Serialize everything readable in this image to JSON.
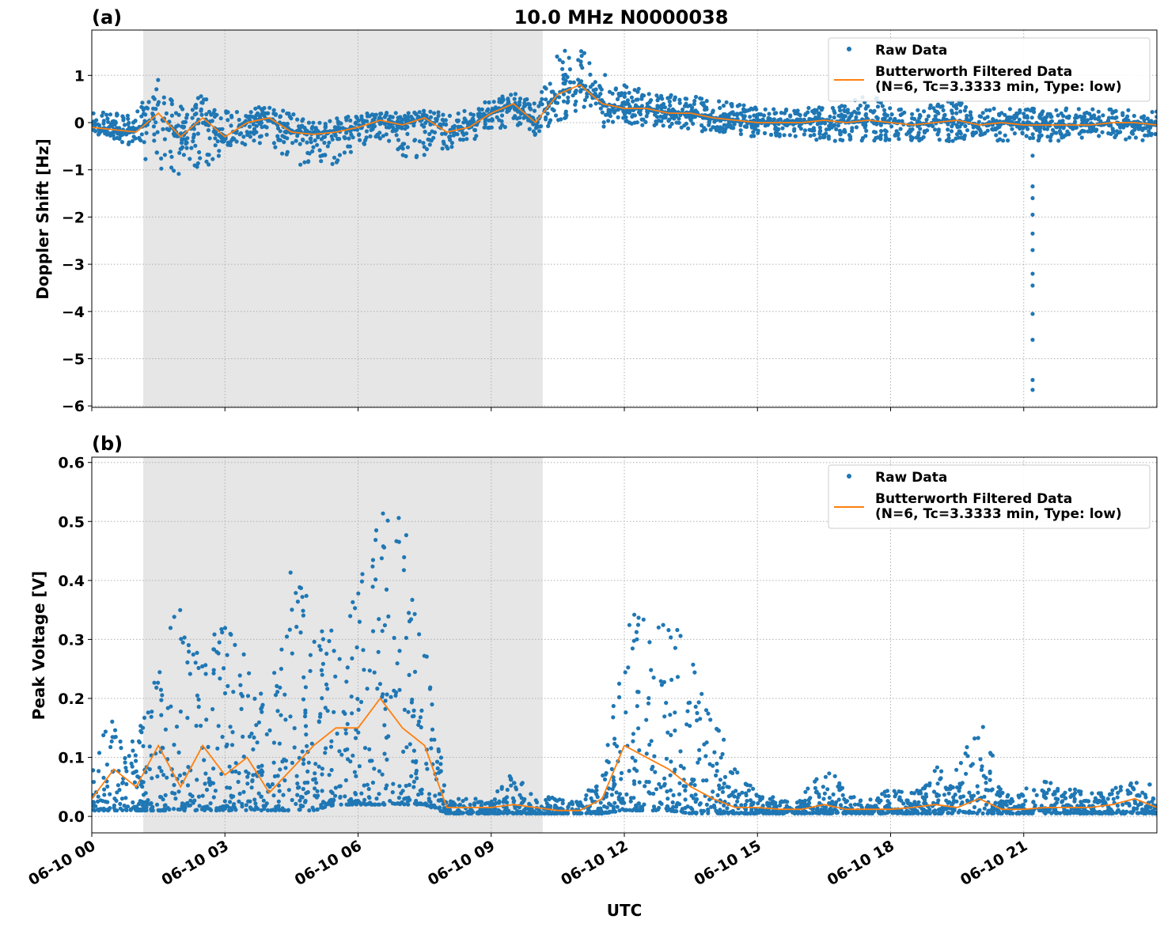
{
  "colors": {
    "raw": "#1f77b4",
    "filtered": "#ff7f0e",
    "shade": "#e6e6e6"
  },
  "chart_data": [
    {
      "type": "scatter",
      "panel_label": "(a)",
      "title": "10.0 MHz N0000038",
      "xlabel": "",
      "ylabel": "Doppler Shift [Hz]",
      "xlim_hours": [
        0,
        24
      ],
      "ylim": [
        -6.03,
        1.96
      ],
      "yticks": [
        "−6",
        "−5",
        "−4",
        "−3",
        "−2",
        "−1",
        "0",
        "1"
      ],
      "ytick_values": [
        -6,
        -5,
        -4,
        -3,
        -2,
        -1,
        0,
        1
      ],
      "grid": true,
      "legend": "top-right",
      "shaded_interval_hours": [
        1.16,
        10.16
      ],
      "x_hours": [
        0,
        0.5,
        1,
        1.5,
        2,
        2.5,
        3,
        3.5,
        4,
        4.5,
        5,
        5.5,
        6,
        6.5,
        7,
        7.5,
        8,
        8.5,
        9,
        9.5,
        10,
        10.5,
        11,
        11.5,
        12,
        12.5,
        13,
        13.5,
        14,
        14.5,
        15,
        15.5,
        16,
        16.5,
        17,
        17.5,
        18,
        18.5,
        19,
        19.5,
        20,
        20.5,
        21,
        21.5,
        22,
        22.5,
        23,
        23.5,
        24
      ],
      "series": [
        {
          "name": "Raw Data",
          "kind": "scatter_envelope",
          "min": [
            -0.4,
            -0.4,
            -0.5,
            -1.2,
            -1.1,
            -1.0,
            -0.6,
            -0.5,
            -0.4,
            -1.0,
            -0.8,
            -0.9,
            -0.5,
            -0.4,
            -0.9,
            -0.7,
            -0.6,
            -0.4,
            -0.2,
            -0.1,
            -0.3,
            0.0,
            0.2,
            -0.1,
            0.0,
            -0.1,
            -0.1,
            -0.2,
            -0.2,
            -0.3,
            -0.3,
            -0.3,
            -0.3,
            -0.4,
            -0.4,
            -0.4,
            -0.4,
            -0.4,
            -0.4,
            -0.4,
            -0.3,
            -0.4,
            -0.4,
            -0.4,
            -0.4,
            -0.3,
            -0.3,
            -0.4,
            -0.4
          ],
          "max": [
            0.3,
            0.2,
            0.2,
            1.0,
            0.4,
            0.6,
            0.3,
            0.3,
            0.35,
            0.2,
            0.1,
            0.1,
            0.2,
            0.2,
            0.3,
            0.25,
            0.2,
            0.3,
            0.5,
            0.75,
            0.4,
            1.5,
            1.6,
            1.1,
            0.8,
            0.7,
            0.6,
            0.6,
            0.5,
            0.4,
            0.35,
            0.3,
            0.3,
            0.5,
            0.35,
            0.7,
            0.3,
            0.3,
            0.4,
            0.5,
            0.3,
            0.3,
            0.3,
            0.3,
            0.3,
            0.3,
            0.3,
            0.3,
            0.3
          ],
          "outliers_hours": [
            21.2,
            21.2,
            21.2,
            21.2,
            21.2,
            21.2,
            21.2,
            21.2,
            21.2,
            21.2,
            21.2,
            21.2
          ],
          "outliers_values": [
            -0.7,
            -1.35,
            -1.6,
            -1.95,
            -2.35,
            -2.7,
            -3.2,
            -3.45,
            -4.05,
            -4.6,
            -5.45,
            -5.66
          ]
        },
        {
          "name": "Butterworth Filtered Data\n(N=6, Tc=3.3333 min, Type: low)",
          "kind": "line",
          "values": [
            -0.1,
            -0.15,
            -0.2,
            0.2,
            -0.3,
            0.1,
            -0.3,
            0.0,
            0.1,
            -0.2,
            -0.25,
            -0.2,
            -0.1,
            0.05,
            -0.05,
            0.1,
            -0.2,
            -0.1,
            0.2,
            0.4,
            0.0,
            0.6,
            0.8,
            0.4,
            0.3,
            0.3,
            0.2,
            0.2,
            0.1,
            0.05,
            0.0,
            0.0,
            0.0,
            0.05,
            0.0,
            0.05,
            0.0,
            -0.05,
            0.0,
            0.05,
            -0.05,
            0.0,
            -0.05,
            -0.05,
            -0.05,
            -0.05,
            0.0,
            0.0,
            -0.05
          ]
        }
      ]
    },
    {
      "type": "scatter",
      "panel_label": "(b)",
      "xlabel": "UTC",
      "ylabel": "Peak Voltage [V]",
      "xlim_hours": [
        0,
        24
      ],
      "ylim": [
        -0.028,
        0.609
      ],
      "yticks": [
        "0.0",
        "0.1",
        "0.2",
        "0.3",
        "0.4",
        "0.5",
        "0.6"
      ],
      "ytick_values": [
        0,
        0.1,
        0.2,
        0.3,
        0.4,
        0.5,
        0.6
      ],
      "xticks": [
        "06-10 00",
        "06-10 03",
        "06-10 06",
        "06-10 09",
        "06-10 12",
        "06-10 15",
        "06-10 18",
        "06-10 21"
      ],
      "xtick_hours": [
        0,
        3,
        6,
        9,
        12,
        15,
        18,
        21
      ],
      "grid": true,
      "legend": "top-right",
      "shaded_interval_hours": [
        1.16,
        10.16
      ],
      "x_hours": [
        0,
        0.5,
        1,
        1.5,
        2,
        2.5,
        3,
        3.5,
        4,
        4.5,
        5,
        5.5,
        6,
        6.5,
        7,
        7.5,
        8,
        8.5,
        9,
        9.5,
        10,
        10.5,
        11,
        11.5,
        12,
        12.5,
        13,
        13.5,
        14,
        14.5,
        15,
        15.5,
        16,
        16.5,
        17,
        17.5,
        18,
        18.5,
        19,
        19.5,
        20,
        20.5,
        21,
        21.5,
        22,
        22.5,
        23,
        23.5,
        24
      ],
      "series": [
        {
          "name": "Raw Data",
          "kind": "scatter_envelope",
          "min": [
            0.01,
            0.01,
            0.01,
            0.01,
            0.01,
            0.01,
            0.01,
            0.01,
            0.01,
            0.01,
            0.01,
            0.02,
            0.02,
            0.02,
            0.02,
            0.02,
            0.005,
            0.005,
            0.005,
            0.005,
            0.005,
            0.005,
            0.005,
            0.005,
            0.01,
            0.01,
            0.01,
            0.005,
            0.005,
            0.005,
            0.005,
            0.005,
            0.005,
            0.005,
            0.005,
            0.005,
            0.005,
            0.005,
            0.005,
            0.005,
            0.005,
            0.005,
            0.005,
            0.005,
            0.005,
            0.005,
            0.005,
            0.005,
            0.005
          ],
          "max": [
            0.1,
            0.19,
            0.13,
            0.26,
            0.38,
            0.32,
            0.33,
            0.28,
            0.19,
            0.44,
            0.37,
            0.35,
            0.39,
            0.58,
            0.51,
            0.32,
            0.03,
            0.03,
            0.03,
            0.08,
            0.04,
            0.03,
            0.03,
            0.07,
            0.36,
            0.34,
            0.35,
            0.3,
            0.18,
            0.08,
            0.04,
            0.03,
            0.03,
            0.1,
            0.04,
            0.03,
            0.05,
            0.04,
            0.09,
            0.08,
            0.2,
            0.04,
            0.05,
            0.06,
            0.05,
            0.04,
            0.05,
            0.06,
            0.06
          ]
        },
        {
          "name": "Butterworth Filtered Data\n(N=6, Tc=3.3333 min, Type: low)",
          "kind": "line",
          "values": [
            0.03,
            0.08,
            0.05,
            0.12,
            0.05,
            0.12,
            0.07,
            0.1,
            0.04,
            0.08,
            0.12,
            0.15,
            0.15,
            0.2,
            0.15,
            0.12,
            0.015,
            0.015,
            0.015,
            0.02,
            0.015,
            0.01,
            0.01,
            0.03,
            0.12,
            0.1,
            0.08,
            0.05,
            0.03,
            0.015,
            0.015,
            0.012,
            0.012,
            0.02,
            0.012,
            0.012,
            0.012,
            0.015,
            0.02,
            0.015,
            0.03,
            0.012,
            0.012,
            0.015,
            0.015,
            0.015,
            0.02,
            0.03,
            0.015
          ]
        }
      ]
    }
  ],
  "legend": {
    "raw": "Raw Data",
    "filtered_line1": "Butterworth Filtered Data",
    "filtered_line2": "(N=6, Tc=3.3333 min, Type: low)"
  }
}
